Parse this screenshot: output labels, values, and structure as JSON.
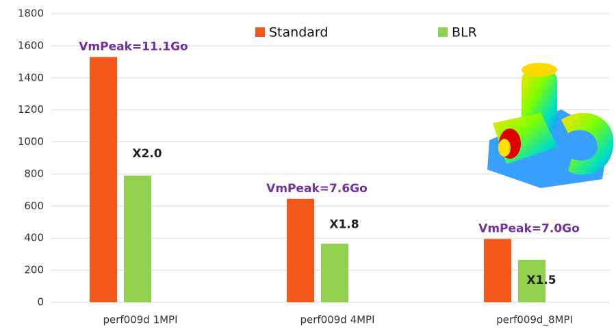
{
  "chart_data": {
    "type": "bar",
    "categories": [
      "perf009d 1MPI",
      "perf009d 4MPI",
      "perf009d_8MPI"
    ],
    "series": [
      {
        "name": "Standard",
        "color": "#f2581a",
        "values": [
          1530,
          645,
          395
        ]
      },
      {
        "name": "BLR",
        "color": "#92d050",
        "values": [
          790,
          365,
          265
        ]
      }
    ],
    "annotations": {
      "memory": [
        "VmPeak=11.1Go",
        "VmPeak=7.6Go",
        "VmPeak=7.0Go"
      ],
      "speedup": [
        "X2.0",
        "X1.8",
        "X1.5"
      ]
    },
    "ylim": [
      0,
      1800
    ],
    "yticks": [
      0,
      200,
      400,
      600,
      800,
      1000,
      1200,
      1400,
      1600,
      1800
    ],
    "grid": true,
    "legend": "top"
  }
}
